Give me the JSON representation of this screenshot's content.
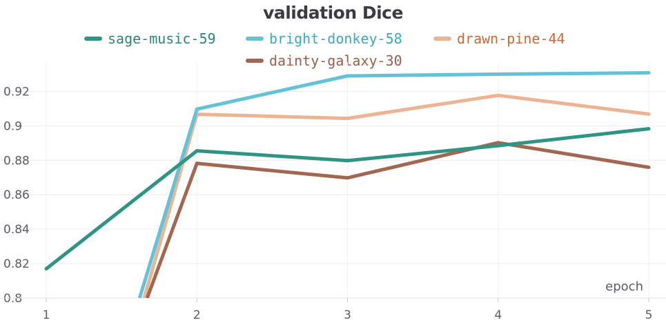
{
  "chart_data": {
    "type": "line",
    "title": "validation Dice",
    "xlabel": "epoch",
    "ylabel": "",
    "x": [
      1,
      2,
      3,
      4,
      5
    ],
    "xlim": [
      1,
      5
    ],
    "ylim": [
      0.8,
      0.935
    ],
    "xticks": [
      "1",
      "2",
      "3",
      "4",
      "5"
    ],
    "yticks": [
      "0.8",
      "0.82",
      "0.84",
      "0.86",
      "0.88",
      "0.9",
      "0.92"
    ],
    "grid": true,
    "legend_position": "top",
    "series": [
      {
        "name": "sage-music-59",
        "color": "#2e9484",
        "x": [
          1,
          2,
          3,
          4,
          5
        ],
        "values": [
          0.817,
          0.8855,
          0.8798,
          0.8885,
          0.8983
        ]
      },
      {
        "name": "bright-donkey-58",
        "color": "#63c2d8",
        "x": [
          1.62,
          2,
          3,
          4,
          5
        ],
        "values": [
          0.8,
          0.9097,
          0.929,
          0.93,
          0.9308
        ]
      },
      {
        "name": "drawn-pine-44",
        "color": "#ebb493",
        "x": [
          1.65,
          2,
          3,
          4,
          5
        ],
        "values": [
          0.8,
          0.9067,
          0.9043,
          0.9177,
          0.9068
        ]
      },
      {
        "name": "dainty-galaxy-30",
        "color": "#a3674f",
        "x": [
          1.67,
          2,
          3,
          4,
          5
        ],
        "values": [
          0.8,
          0.8782,
          0.8698,
          0.8902,
          0.8759
        ]
      }
    ]
  },
  "legend_text_colors": [
    "#2e8574",
    "#3aa9c4",
    "#c86a35",
    "#9a604b"
  ]
}
